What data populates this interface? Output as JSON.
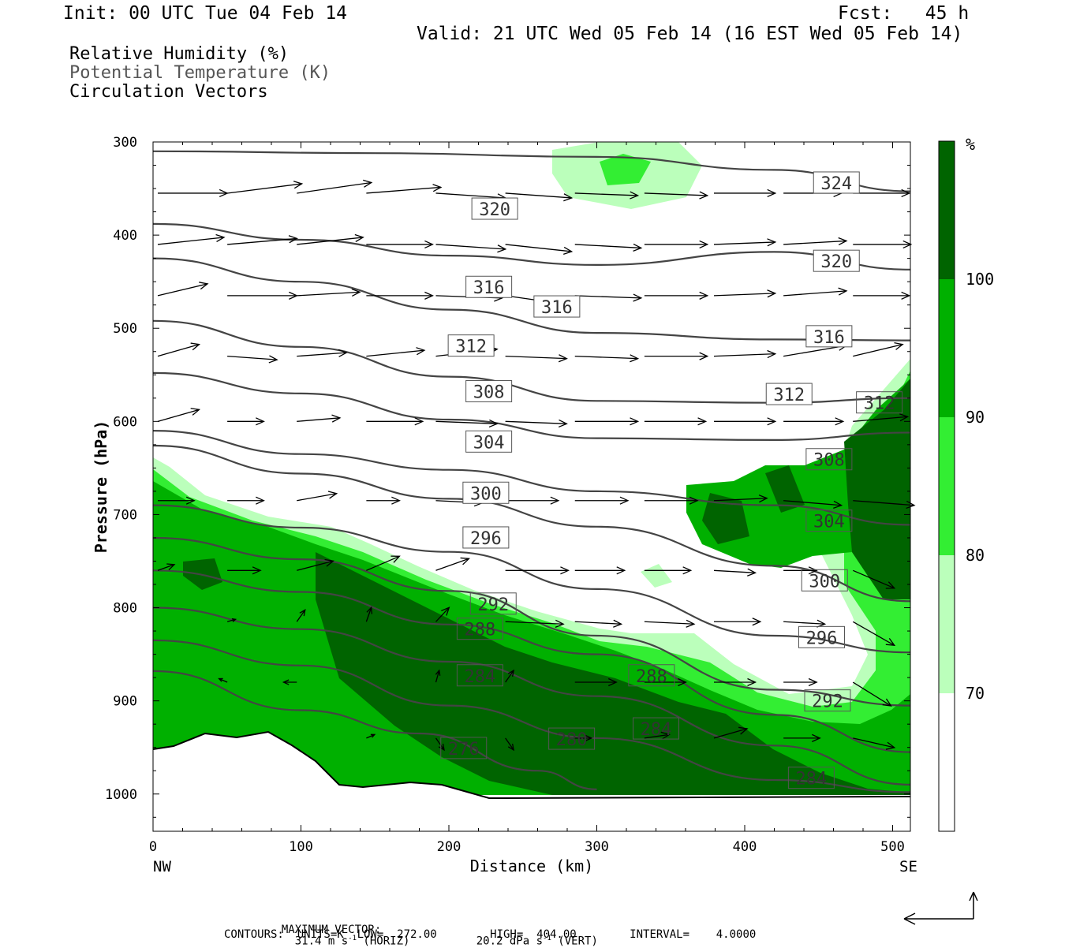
{
  "header": {
    "init": "Init: 00 UTC Tue 04 Feb 14",
    "fcst": "Fcst:   45 h",
    "valid": "Valid: 21 UTC Wed 05 Feb 14 (16 EST Wed 05 Feb 14)"
  },
  "legend": {
    "line1": "Relative Humidity (%)",
    "line2": "Potential Temperature (K)",
    "line3": "Circulation Vectors"
  },
  "colorbar": {
    "unit": "%",
    "levels": [
      "100",
      "90",
      "80",
      "70"
    ],
    "colors": [
      "#006400",
      "#00b000",
      "#33ee33",
      "#bbffbb",
      "#ffffff"
    ]
  },
  "footer": {
    "max_vector_label": "MAXIMUM VECTOR:",
    "horiz_value": "31.4 m s",
    "horiz_suffix": " (HORIZ)",
    "vert_value": "20.2 dPa s",
    "vert_suffix": " (VERT)",
    "exp": "-1",
    "contours": "CONTOURS:  UNITS=K  LOW=  272.00        HIGH=  404.00        INTERVAL=    4.0000"
  },
  "chart_data": {
    "type": "cross-section",
    "xlabel": "Distance (km)",
    "ylabel": "Pressure (hPa)",
    "xlim": [
      0,
      512
    ],
    "ylim": [
      1040,
      300
    ],
    "xticks": [
      0,
      100,
      200,
      300,
      400,
      500
    ],
    "yticks": [
      300,
      400,
      500,
      600,
      700,
      800,
      900,
      1000
    ],
    "x_end_labels": {
      "left": "NW",
      "right": "SE"
    },
    "theta_contours": [
      {
        "theta": 324,
        "pts": [
          [
            0,
            310
          ],
          [
            150,
            312
          ],
          [
            300,
            316
          ],
          [
            420,
            330
          ],
          [
            512,
            353
          ]
        ],
        "label_at": [
          462,
          344
        ]
      },
      {
        "theta": 320,
        "pts": [
          [
            0,
            388
          ],
          [
            100,
            405
          ],
          [
            200,
            422
          ],
          [
            300,
            432
          ],
          [
            420,
            418
          ],
          [
            512,
            437
          ]
        ],
        "label_at": [
          231,
          372
        ],
        "label2_at": [
          462,
          428
        ]
      },
      {
        "theta": 316,
        "pts": [
          [
            0,
            425
          ],
          [
            100,
            450
          ],
          [
            200,
            480
          ],
          [
            300,
            505
          ],
          [
            420,
            512
          ],
          [
            512,
            513
          ]
        ],
        "label_at": [
          227,
          456
        ],
        "label2_at": [
          273,
          477
        ],
        "label3_at": [
          457,
          509
        ]
      },
      {
        "theta": 312,
        "pts": [
          [
            0,
            492
          ],
          [
            100,
            520
          ],
          [
            200,
            552
          ],
          [
            300,
            578
          ],
          [
            420,
            580
          ],
          [
            512,
            575
          ]
        ],
        "label_at": [
          215,
          519
        ],
        "label2_at": [
          430,
          571
        ],
        "label3_at": [
          491,
          580
        ]
      },
      {
        "theta": 308,
        "pts": [
          [
            0,
            548
          ],
          [
            100,
            570
          ],
          [
            200,
            598
          ],
          [
            300,
            618
          ],
          [
            420,
            620
          ],
          [
            512,
            612
          ]
        ],
        "label_at": [
          227,
          568
        ],
        "label2_at": [
          457,
          641
        ]
      },
      {
        "theta": 304,
        "pts": [
          [
            0,
            610
          ],
          [
            100,
            635
          ],
          [
            200,
            652
          ],
          [
            300,
            675
          ],
          [
            420,
            690
          ],
          [
            512,
            711
          ]
        ],
        "label_at": [
          227,
          622
        ],
        "label2_at": [
          457,
          707
        ]
      },
      {
        "theta": 300,
        "pts": [
          [
            0,
            626
          ],
          [
            100,
            656
          ],
          [
            200,
            683
          ],
          [
            300,
            713
          ],
          [
            420,
            755
          ],
          [
            512,
            793
          ]
        ],
        "label_at": [
          225,
          677
        ],
        "label2_at": [
          454,
          771
        ]
      },
      {
        "theta": 296,
        "pts": [
          [
            0,
            690
          ],
          [
            100,
            714
          ],
          [
            200,
            740
          ],
          [
            300,
            780
          ],
          [
            420,
            830
          ],
          [
            512,
            848
          ]
        ],
        "label_at": [
          225,
          725
        ],
        "label2_at": [
          452,
          832
        ]
      },
      {
        "theta": 292,
        "pts": [
          [
            0,
            725
          ],
          [
            100,
            748
          ],
          [
            200,
            782
          ],
          [
            300,
            830
          ],
          [
            420,
            888
          ],
          [
            512,
            905
          ]
        ],
        "label_at": [
          230,
          796
        ],
        "label2_at": [
          456,
          900
        ]
      },
      {
        "theta": 288,
        "pts": [
          [
            0,
            760
          ],
          [
            100,
            783
          ],
          [
            200,
            818
          ],
          [
            300,
            850
          ],
          [
            420,
            915
          ],
          [
            512,
            955
          ]
        ],
        "label_at": [
          221,
          823
        ],
        "label2_at": [
          337,
          873
        ]
      },
      {
        "theta": 284,
        "pts": [
          [
            0,
            800
          ],
          [
            100,
            823
          ],
          [
            200,
            858
          ],
          [
            300,
            895
          ],
          [
            420,
            948
          ],
          [
            512,
            990
          ]
        ],
        "label_at": [
          221,
          873
        ],
        "label2_at": [
          340,
          930
        ],
        "label3_at": [
          445,
          983
        ]
      },
      {
        "theta": 280,
        "pts": [
          [
            0,
            835
          ],
          [
            100,
            862
          ],
          [
            200,
            905
          ],
          [
            300,
            940
          ],
          [
            420,
            985
          ],
          [
            512,
            998
          ]
        ],
        "label_at": [
          283,
          941
        ]
      },
      {
        "theta": 276,
        "pts": [
          [
            0,
            868
          ],
          [
            100,
            910
          ],
          [
            180,
            935
          ],
          [
            260,
            975
          ],
          [
            300,
            995
          ]
        ],
        "label_at": [
          210,
          951
        ]
      }
    ],
    "circulation_vectors": [
      {
        "p": 355,
        "x": [
          0,
          47,
          94,
          141,
          188,
          235,
          282,
          329,
          376,
          423,
          470
        ],
        "u": [
          42,
          45,
          45,
          45,
          42,
          40,
          38,
          38,
          37,
          35,
          34
        ],
        "v": [
          0,
          -8,
          -9,
          -5,
          4,
          4,
          2,
          2,
          0,
          0,
          0
        ]
      },
      {
        "p": 410,
        "x": [
          0,
          47,
          94,
          141,
          188,
          235,
          282,
          329,
          376,
          423,
          470
        ],
        "u": [
          40,
          42,
          40,
          40,
          42,
          40,
          40,
          38,
          37,
          38,
          35
        ],
        "v": [
          -6,
          -5,
          -6,
          0,
          4,
          6,
          3,
          0,
          -2,
          -3,
          0
        ]
      },
      {
        "p": 465,
        "x": [
          0,
          47,
          94,
          141,
          188,
          235,
          282,
          329,
          376,
          423,
          470
        ],
        "u": [
          30,
          42,
          38,
          40,
          40,
          40,
          40,
          38,
          37,
          38,
          34
        ],
        "v": [
          -10,
          0,
          -3,
          0,
          2,
          8,
          2,
          0,
          -2,
          -4,
          0
        ]
      },
      {
        "p": 530,
        "x": [
          0,
          47,
          94,
          141,
          188,
          235,
          282,
          329,
          376,
          423,
          470
        ],
        "u": [
          25,
          30,
          30,
          35,
          37,
          37,
          38,
          38,
          37,
          38,
          30
        ],
        "v": [
          -10,
          3,
          -3,
          -5,
          -6,
          2,
          2,
          0,
          -2,
          -9,
          -10
        ]
      },
      {
        "p": 600,
        "x": [
          0,
          47,
          94,
          141,
          188,
          235,
          282,
          329,
          376,
          423,
          470
        ],
        "u": [
          25,
          22,
          26,
          34,
          37,
          37,
          38,
          37,
          37,
          36,
          33
        ],
        "v": [
          -10,
          0,
          -3,
          0,
          2,
          2,
          0,
          0,
          0,
          0,
          -4
        ]
      },
      {
        "p": 685,
        "x": [
          0,
          47,
          94,
          141,
          188,
          235,
          282,
          329,
          376,
          423,
          470
        ],
        "u": [
          22,
          22,
          24,
          20,
          28,
          32,
          32,
          32,
          32,
          35,
          37
        ],
        "v": [
          0,
          0,
          -6,
          0,
          2,
          0,
          0,
          0,
          -2,
          4,
          4
        ]
      },
      {
        "p": 760,
        "x": [
          0,
          47,
          94,
          141,
          188,
          235,
          282,
          329,
          376,
          423,
          470
        ],
        "u": [
          10,
          20,
          22,
          20,
          20,
          38,
          30,
          28,
          25,
          20,
          25
        ],
        "v": [
          -5,
          0,
          -8,
          -12,
          -10,
          0,
          0,
          0,
          2,
          0,
          15
        ]
      },
      {
        "p": 815,
        "x": [
          47,
          94,
          141,
          188,
          235,
          282,
          329,
          376,
          423,
          470
        ],
        "u": [
          5,
          5,
          3,
          8,
          35,
          28,
          30,
          28,
          25,
          25
        ],
        "v": [
          -2,
          -10,
          -12,
          -12,
          2,
          2,
          2,
          0,
          2,
          20
        ]
      },
      {
        "p": 880,
        "x": [
          47,
          94,
          141,
          188,
          235,
          282,
          329,
          376,
          423,
          470
        ],
        "u": [
          -5,
          -8,
          0,
          2,
          5,
          25,
          25,
          25,
          20,
          23
        ],
        "v": [
          -3,
          0,
          0,
          -10,
          -10,
          0,
          0,
          0,
          0,
          20
        ]
      },
      {
        "p": 940,
        "x": [
          141,
          188,
          235,
          282,
          329,
          376,
          423,
          470
        ],
        "u": [
          5,
          5,
          5,
          10,
          15,
          20,
          22,
          25
        ],
        "v": [
          -3,
          10,
          10,
          0,
          -3,
          -8,
          0,
          8
        ]
      }
    ]
  }
}
